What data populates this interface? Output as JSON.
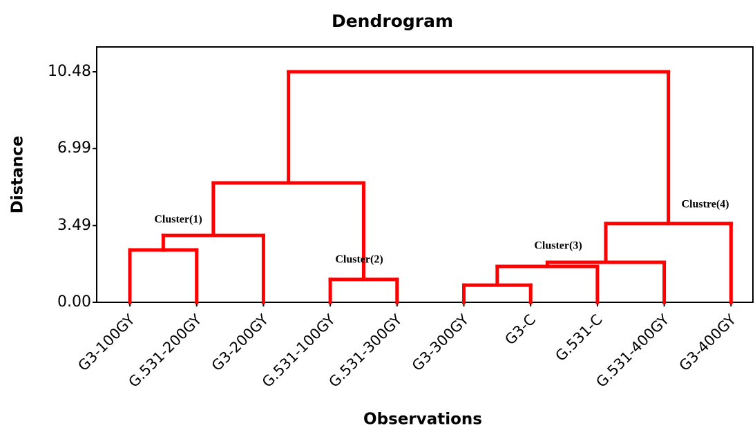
{
  "chart_data": {
    "type": "dendrogram",
    "title": "Dendrogram",
    "x_label": "Observations",
    "y_label": "Distance",
    "leaves": [
      "G3-100GY",
      "G.531-200GY",
      "G3-200GY",
      "G.531-100GY",
      "G.531-300GY",
      "G3-300GY",
      "G3-C",
      "G.531-C",
      "G.531-400GY",
      "G3-400GY"
    ],
    "merges": [
      {
        "left": 0,
        "right": 1,
        "height": 2.38
      },
      {
        "left": 10,
        "right": 2,
        "height": 3.04
      },
      {
        "left": 3,
        "right": 4,
        "height": 1.04
      },
      {
        "left": 11,
        "right": 12,
        "height": 5.43
      },
      {
        "left": 5,
        "right": 6,
        "height": 0.78
      },
      {
        "left": 14,
        "right": 7,
        "height": 1.63
      },
      {
        "left": 15,
        "right": 8,
        "height": 1.82
      },
      {
        "left": 16,
        "right": 9,
        "height": 3.58
      },
      {
        "left": 13,
        "right": 17,
        "height": 10.48
      }
    ],
    "annotations": [
      "Cluster(1)",
      "Cluster(2)",
      "Cluster(3)",
      "Clustre(4)"
    ],
    "color": "#ff0000",
    "ylim": [
      0,
      11.61
    ],
    "yticks": [
      {
        "value": 0,
        "label": "0.00"
      },
      {
        "value": 3.49,
        "label": "3.49"
      },
      {
        "value": 6.99,
        "label": "6.99"
      },
      {
        "value": 10.48,
        "label": "10.48"
      }
    ]
  }
}
